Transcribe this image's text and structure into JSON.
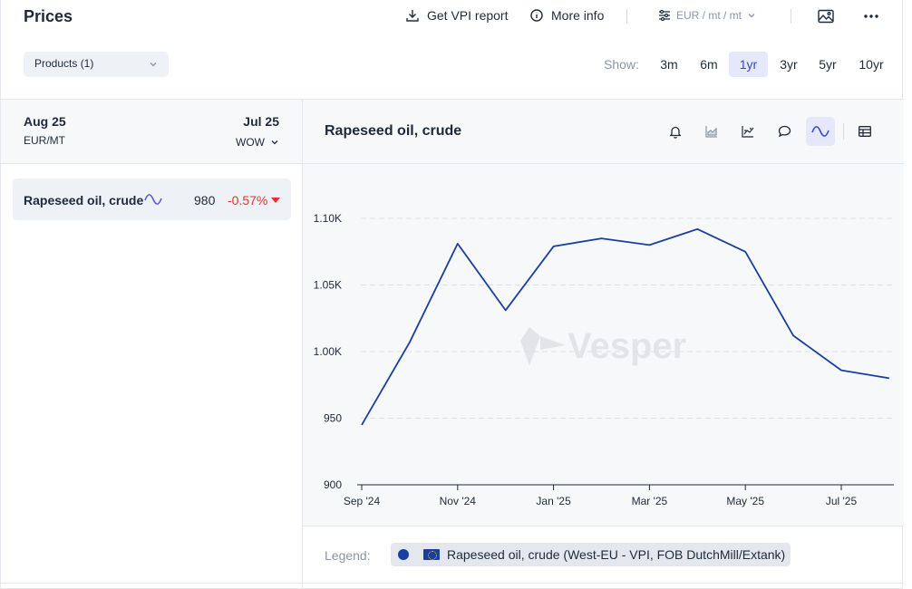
{
  "header": {
    "title": "Prices",
    "get_report_label": "Get VPI report",
    "more_info_label": "More info",
    "unit_selector": "EUR / mt / mt"
  },
  "filters": {
    "products_label": "Products (1)",
    "show_label": "Show:",
    "ranges": [
      {
        "label": "3m",
        "active": false
      },
      {
        "label": "6m",
        "active": false
      },
      {
        "label": "1yr",
        "active": true
      },
      {
        "label": "3yr",
        "active": false
      },
      {
        "label": "5yr",
        "active": false
      },
      {
        "label": "10yr",
        "active": false
      }
    ]
  },
  "left_panel": {
    "date_from": "Aug 25",
    "unit": "EUR/MT",
    "date_to": "Jul 25",
    "compare": "WOW",
    "products": [
      {
        "name": "Rapeseed oil, crude",
        "value": "980",
        "change": "-0.57%"
      }
    ]
  },
  "chart_panel": {
    "title": "Rapeseed oil, crude",
    "icons": [
      "bell-icon",
      "area-chart-icon",
      "trend-chart-icon",
      "comment-icon",
      "line-chart-icon",
      "table-icon"
    ],
    "watermark": "Vesper"
  },
  "chart_data": {
    "type": "line",
    "x": [
      "Sep '24",
      "Oct '24",
      "Nov '24",
      "Dec '24",
      "Jan '25",
      "Feb '25",
      "Mar '25",
      "Apr '25",
      "May '25",
      "Jun '25",
      "Jul '25",
      "Aug '25"
    ],
    "x_tick_labels": [
      "Sep '24",
      "Nov '24",
      "Jan '25",
      "Mar '25",
      "May '25",
      "Jul '25"
    ],
    "series": [
      {
        "name": "Rapeseed oil, crude (West-EU - VPI, FOB DutchMill/Extank)",
        "values": [
          945,
          1007,
          1081,
          1031,
          1079,
          1085,
          1080,
          1092,
          1075,
          1012,
          986,
          980
        ],
        "color": "#1a3fa0"
      }
    ],
    "y_ticks": [
      "900",
      "950",
      "1.00K",
      "1.05K",
      "1.10K"
    ],
    "y_tick_values": [
      900,
      950,
      1000,
      1050,
      1100
    ],
    "ylim": [
      900,
      1100
    ],
    "grid": true
  },
  "legend": {
    "label": "Legend:",
    "entries": [
      "Rapeseed oil, crude (West-EU - VPI, FOB DutchMill/Extank)"
    ]
  }
}
